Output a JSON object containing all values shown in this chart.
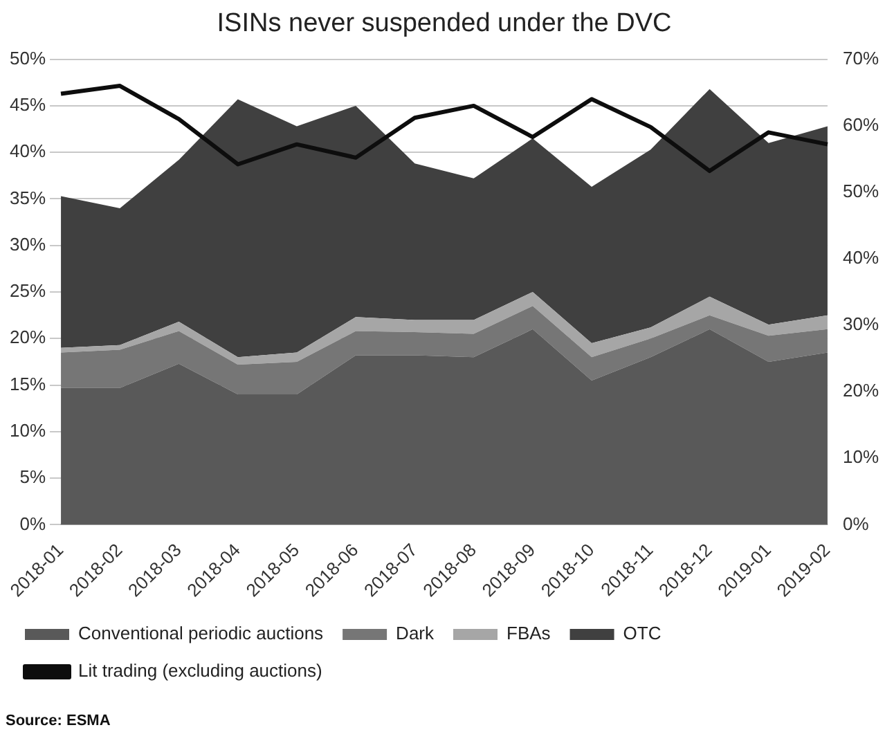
{
  "chart_data": {
    "type": "area",
    "title": "ISINs never suspended under the DVC",
    "stacked": true,
    "grid": "y",
    "legend": "bottom",
    "marker": "none",
    "categories": [
      "2018-01",
      "2018-02",
      "2018-03",
      "2018-04",
      "2018-05",
      "2018-06",
      "2018-07",
      "2018-08",
      "2018-09",
      "2018-10",
      "2018-11",
      "2018-12",
      "2019-01",
      "2019-02"
    ],
    "series": [
      {
        "name": "Conventional periodic auctions",
        "color": "#595959",
        "values": [
          14.7,
          14.7,
          17.3,
          14.0,
          14.0,
          18.2,
          18.2,
          18.0,
          21.0,
          15.5,
          18.0,
          21.0,
          17.5,
          18.5
        ]
      },
      {
        "name": "Dark",
        "color": "#767676",
        "values": [
          3.8,
          4.1,
          3.5,
          3.2,
          3.5,
          2.6,
          2.5,
          2.5,
          2.5,
          2.5,
          2.0,
          1.5,
          2.8,
          2.5
        ]
      },
      {
        "name": "FBAs",
        "color": "#a6a6a6",
        "values": [
          0.5,
          0.5,
          1.0,
          0.8,
          1.0,
          1.5,
          1.3,
          1.5,
          1.5,
          1.5,
          1.2,
          2.0,
          1.2,
          1.5
        ]
      },
      {
        "name": "OTC",
        "color": "#404040",
        "values": [
          16.3,
          14.7,
          17.4,
          27.7,
          24.3,
          22.7,
          16.8,
          15.2,
          16.5,
          16.8,
          19.1,
          22.3,
          19.5,
          20.3
        ]
      },
      {
        "name": "Lit trading (excluding auctions)",
        "type": "line",
        "axis": "y2",
        "color": "#0d0d0d",
        "values": [
          64.8,
          66.0,
          61.0,
          54.2,
          57.2,
          55.2,
          61.2,
          63.0,
          58.3,
          64.0,
          59.8,
          53.2,
          59.0,
          57.2
        ]
      }
    ],
    "ylim": [
      0,
      50
    ],
    "yticks": [
      {
        "value": 0,
        "label": "0%"
      },
      {
        "value": 5,
        "label": "5%"
      },
      {
        "value": 10,
        "label": "10%"
      },
      {
        "value": 15,
        "label": "15%"
      },
      {
        "value": 20,
        "label": "20%"
      },
      {
        "value": 25,
        "label": "25%"
      },
      {
        "value": 30,
        "label": "30%"
      },
      {
        "value": 35,
        "label": "35%"
      },
      {
        "value": 40,
        "label": "40%"
      },
      {
        "value": 45,
        "label": "45%"
      },
      {
        "value": 50,
        "label": "50%"
      }
    ],
    "y2lim": [
      0,
      70
    ],
    "y2ticks": [
      {
        "value": 0,
        "label": "0%"
      },
      {
        "value": 10,
        "label": "10%"
      },
      {
        "value": 20,
        "label": "20%"
      },
      {
        "value": 30,
        "label": "30%"
      },
      {
        "value": 40,
        "label": "40%"
      },
      {
        "value": 50,
        "label": "50%"
      },
      {
        "value": 60,
        "label": "60%"
      },
      {
        "value": 70,
        "label": "70%"
      }
    ],
    "annotations": [
      "Source: ESMA"
    ]
  }
}
